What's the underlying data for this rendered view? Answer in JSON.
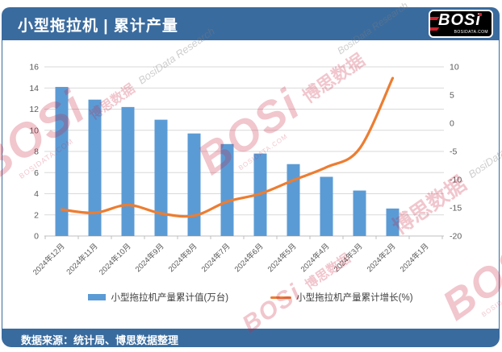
{
  "header": {
    "title": "小型拖拉机 | 累计产量",
    "logo": {
      "text": "BOSi",
      "site": "BOSIDATA.COM"
    }
  },
  "footer": {
    "source": "数据来源：统计局、博思数据整理"
  },
  "watermark": {
    "logo": "BOSi",
    "site": "BOSIDATA.COM",
    "cn": "博思数据",
    "en": "BosiData Research"
  },
  "colors": {
    "bar": "#5B9BD5",
    "line": "#ED7D31",
    "band_blue": "#3A6B9E",
    "grid": "#D9D9D9",
    "axis_line": "#BFBFBF",
    "axis_text": "#595959",
    "logo_red": "#D0202E"
  },
  "chart_data": {
    "type": "bar",
    "subtype": "bar+line-dual-axis",
    "categories": [
      "2024年12月",
      "2024年11月",
      "2024年10月",
      "2024年9月",
      "2024年8月",
      "2024年7月",
      "2024年6月",
      "2024年5月",
      "2024年4月",
      "2024年3月",
      "2024年2月",
      "2024年1月"
    ],
    "series": [
      {
        "name": "小型拖拉机产量累计值(万台)",
        "type": "bar",
        "axis": "left",
        "values": [
          14.1,
          12.9,
          12.2,
          11.0,
          9.7,
          8.7,
          7.8,
          6.8,
          5.6,
          4.3,
          2.6,
          null
        ]
      },
      {
        "name": "小型拖拉机产量累计增长(%)",
        "type": "line",
        "axis": "right",
        "values": [
          -15.3,
          -15.9,
          -14.5,
          -16.0,
          -16.4,
          -13.9,
          -12.5,
          -10.1,
          -7.8,
          -4.5,
          8.0,
          null
        ]
      }
    ],
    "left_axis": {
      "min": 0,
      "max": 16,
      "step": 2,
      "ticks": [
        16,
        14,
        12,
        10,
        8,
        6,
        4,
        2,
        0
      ]
    },
    "right_axis": {
      "min": -20,
      "max": 10,
      "step": 5,
      "ticks": [
        10,
        5,
        0,
        -5,
        -10,
        -15,
        -20
      ]
    },
    "grid": true,
    "legend_position": "bottom",
    "x_labels_rotation": -45
  }
}
